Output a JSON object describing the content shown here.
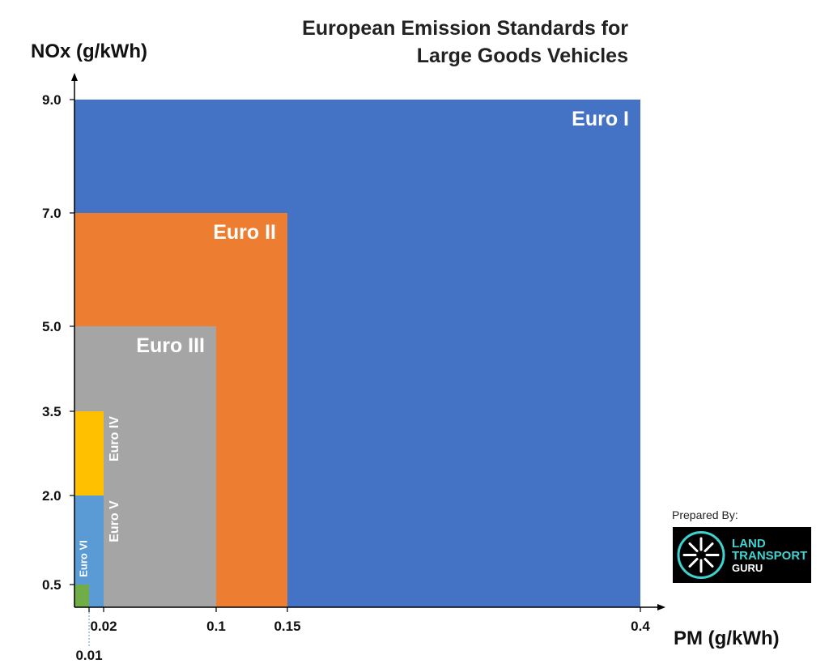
{
  "chart_data": {
    "type": "nested-rectangles",
    "title_line1": "European Emission Standards for",
    "title_line2": "Large Goods Vehicles",
    "xlabel": "PM (g/kWh)",
    "ylabel": "NOx (g/kWh)",
    "x_ticks": [
      {
        "value": 0.01,
        "label": "0.01"
      },
      {
        "value": 0.02,
        "label": "0.02"
      },
      {
        "value": 0.1,
        "label": "0.1"
      },
      {
        "value": 0.15,
        "label": "0.15"
      },
      {
        "value": 0.4,
        "label": "0.4"
      }
    ],
    "y_ticks": [
      {
        "value": 0.5,
        "label": "0.5"
      },
      {
        "value": 2.0,
        "label": "2.0"
      },
      {
        "value": 3.5,
        "label": "3.5"
      },
      {
        "value": 5.0,
        "label": "5.0"
      },
      {
        "value": 7.0,
        "label": "7.0"
      },
      {
        "value": 9.0,
        "label": "9.0"
      }
    ],
    "standards": [
      {
        "name": "Euro I",
        "pm": 0.4,
        "nox": 9.0,
        "color": "#4472c4",
        "label_orientation": "horizontal"
      },
      {
        "name": "Euro II",
        "pm": 0.15,
        "nox": 7.0,
        "color": "#ed7d31",
        "label_orientation": "horizontal"
      },
      {
        "name": "Euro III",
        "pm": 0.1,
        "nox": 5.0,
        "color": "#a5a5a5",
        "label_orientation": "horizontal"
      },
      {
        "name": "Euro IV",
        "pm": 0.02,
        "nox": 3.5,
        "color": "#ffc000",
        "label_orientation": "vertical"
      },
      {
        "name": "Euro V",
        "pm": 0.02,
        "nox": 2.0,
        "color": "#5b9bd5",
        "label_orientation": "vertical"
      },
      {
        "name": "Euro VI",
        "pm": 0.01,
        "nox": 0.5,
        "color": "#70ad47",
        "label_orientation": "vertical"
      }
    ]
  },
  "credit": {
    "prepared_by": "Prepared By:",
    "logo_line1": "LAND",
    "logo_line2": "TRANSPORT",
    "logo_line3": "GURU"
  }
}
